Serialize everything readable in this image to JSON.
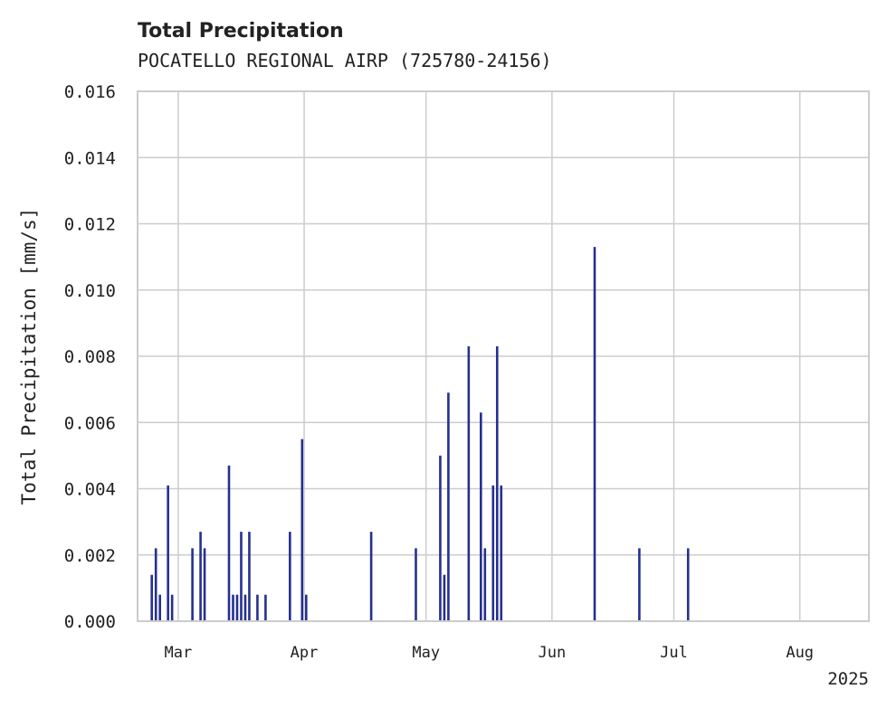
{
  "chart_data": {
    "type": "bar",
    "title": "Total Precipitation",
    "subtitle": "POCATELLO REGIONAL AIRP (725780-24156)",
    "ylabel": "Total Precipitation [mm/s]",
    "xlabel": "",
    "ylim": [
      0,
      0.016
    ],
    "yticks": [
      "0.000",
      "0.002",
      "0.004",
      "0.006",
      "0.008",
      "0.010",
      "0.012",
      "0.014",
      "0.016"
    ],
    "xlim": [
      "2025-02-19",
      "2025-08-18"
    ],
    "xticks": [
      {
        "date": "2025-03-01",
        "label": "Mar"
      },
      {
        "date": "2025-04-01",
        "label": "Apr"
      },
      {
        "date": "2025-05-01",
        "label": "May"
      },
      {
        "date": "2025-06-01",
        "label": "Jun"
      },
      {
        "date": "2025-07-01",
        "label": "Jul"
      },
      {
        "date": "2025-08-01",
        "label": "Aug"
      }
    ],
    "year_label": "2025",
    "grid": true,
    "color": "#25308f",
    "x": [
      "2025-02-22",
      "2025-02-23",
      "2025-02-24",
      "2025-02-26",
      "2025-02-27",
      "2025-03-04",
      "2025-03-06",
      "2025-03-07",
      "2025-03-13",
      "2025-03-14",
      "2025-03-15",
      "2025-03-16",
      "2025-03-17",
      "2025-03-18",
      "2025-03-20",
      "2025-03-22",
      "2025-03-28",
      "2025-03-31",
      "2025-04-01",
      "2025-04-17",
      "2025-04-28",
      "2025-05-04",
      "2025-05-05",
      "2025-05-06",
      "2025-05-11",
      "2025-05-14",
      "2025-05-15",
      "2025-05-17",
      "2025-05-18",
      "2025-05-19",
      "2025-06-11",
      "2025-06-22",
      "2025-07-04"
    ],
    "values": [
      0.0014,
      0.0022,
      0.0008,
      0.0041,
      0.0008,
      0.0022,
      0.0027,
      0.0022,
      0.0047,
      0.0008,
      0.0008,
      0.0027,
      0.0008,
      0.0027,
      0.0008,
      0.0008,
      0.0027,
      0.0055,
      0.0008,
      0.0027,
      0.0022,
      0.005,
      0.0014,
      0.0069,
      0.0083,
      0.0063,
      0.0022,
      0.0041,
      0.0083,
      0.0041,
      0.0113,
      0.0022,
      0.0022
    ]
  }
}
